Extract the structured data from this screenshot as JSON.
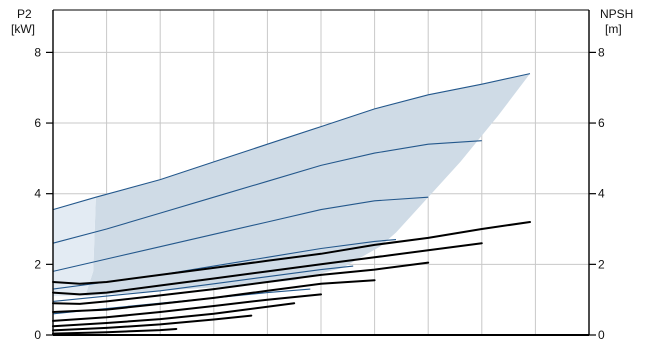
{
  "chart_data": {
    "type": "line",
    "title": "",
    "grid": true,
    "y_left": {
      "label_line1": "P2",
      "label_line2": "[kW]",
      "ylim": [
        0,
        9.2
      ],
      "ticks": [
        0,
        2,
        4,
        6,
        8
      ]
    },
    "y_right": {
      "label_line1": "NPSH",
      "label_line2": "[m]",
      "ylim": [
        0,
        9.2
      ],
      "ticks": [
        0,
        2,
        4,
        6,
        8
      ]
    },
    "x": {
      "xlim": [
        0,
        10
      ],
      "gridlines": [
        1,
        2,
        3,
        4,
        5,
        6,
        7,
        8,
        9
      ]
    },
    "p2_envelope": {
      "upper": [
        [
          0.8,
          3.9
        ],
        [
          2.0,
          4.4
        ],
        [
          3.0,
          4.9
        ],
        [
          4.0,
          5.4
        ],
        [
          5.0,
          5.9
        ],
        [
          6.0,
          6.4
        ],
        [
          7.0,
          6.8
        ],
        [
          8.0,
          7.1
        ],
        [
          8.9,
          7.4
        ]
      ],
      "right": [
        [
          8.9,
          7.4
        ],
        [
          8.3,
          6.2
        ],
        [
          7.6,
          4.9
        ],
        [
          7.0,
          3.9
        ],
        [
          6.4,
          2.9
        ],
        [
          6.1,
          2.5
        ],
        [
          5.4,
          1.9
        ],
        [
          4.5,
          1.55
        ],
        [
          3.5,
          1.4
        ],
        [
          2.5,
          1.3
        ],
        [
          1.5,
          1.2
        ],
        [
          0.6,
          1.1
        ]
      ],
      "left": [
        [
          0.6,
          1.1
        ],
        [
          0.75,
          1.8
        ],
        [
          0.8,
          3.9
        ]
      ],
      "fill_color": "#cfdbe6",
      "fill_left_color": "#e3ebf3"
    },
    "p2_series": [
      {
        "points": [
          [
            0.0,
            3.55
          ],
          [
            0.8,
            3.9
          ],
          [
            2.0,
            4.4
          ],
          [
            3.0,
            4.9
          ],
          [
            4.0,
            5.4
          ],
          [
            5.0,
            5.9
          ],
          [
            6.0,
            6.4
          ],
          [
            7.0,
            6.8
          ],
          [
            8.0,
            7.1
          ],
          [
            8.9,
            7.4
          ]
        ],
        "color": "#24588c"
      },
      {
        "points": [
          [
            0.0,
            2.6
          ],
          [
            1.0,
            3.0
          ],
          [
            2.0,
            3.45
          ],
          [
            3.0,
            3.9
          ],
          [
            4.0,
            4.35
          ],
          [
            5.0,
            4.8
          ],
          [
            6.0,
            5.15
          ],
          [
            7.0,
            5.4
          ],
          [
            8.0,
            5.5
          ]
        ],
        "color": "#24588c"
      },
      {
        "points": [
          [
            0.0,
            1.8
          ],
          [
            1.0,
            2.15
          ],
          [
            2.0,
            2.5
          ],
          [
            3.0,
            2.85
          ],
          [
            4.0,
            3.2
          ],
          [
            5.0,
            3.55
          ],
          [
            6.0,
            3.8
          ],
          [
            7.0,
            3.9
          ]
        ],
        "color": "#24588c"
      },
      {
        "points": [
          [
            0.0,
            1.3
          ],
          [
            1.0,
            1.5
          ],
          [
            2.0,
            1.7
          ],
          [
            3.0,
            1.95
          ],
          [
            4.0,
            2.2
          ],
          [
            5.0,
            2.45
          ],
          [
            6.0,
            2.65
          ],
          [
            6.4,
            2.7
          ]
        ],
        "color": "#24588c"
      },
      {
        "points": [
          [
            0.0,
            0.95
          ],
          [
            1.0,
            1.1
          ],
          [
            2.0,
            1.25
          ],
          [
            3.0,
            1.45
          ],
          [
            4.0,
            1.65
          ],
          [
            5.0,
            1.85
          ],
          [
            5.6,
            1.95
          ]
        ],
        "color": "#24588c"
      },
      {
        "points": [
          [
            0.0,
            0.6
          ],
          [
            1.0,
            0.75
          ],
          [
            2.0,
            0.9
          ],
          [
            3.0,
            1.05
          ],
          [
            4.0,
            1.2
          ],
          [
            4.8,
            1.3
          ]
        ],
        "color": "#24588c"
      }
    ],
    "npsh_series": [
      {
        "points": [
          [
            0.0,
            1.5
          ],
          [
            0.5,
            1.45
          ],
          [
            1.0,
            1.5
          ],
          [
            2.0,
            1.7
          ],
          [
            3.0,
            1.9
          ],
          [
            4.0,
            2.1
          ],
          [
            5.0,
            2.3
          ],
          [
            6.0,
            2.55
          ],
          [
            7.0,
            2.75
          ],
          [
            8.0,
            3.0
          ],
          [
            8.9,
            3.2
          ]
        ],
        "color": "#000000"
      },
      {
        "points": [
          [
            0.0,
            1.2
          ],
          [
            0.5,
            1.15
          ],
          [
            1.0,
            1.2
          ],
          [
            2.0,
            1.4
          ],
          [
            3.0,
            1.6
          ],
          [
            4.0,
            1.8
          ],
          [
            5.0,
            2.0
          ],
          [
            6.0,
            2.2
          ],
          [
            7.0,
            2.4
          ],
          [
            8.0,
            2.6
          ]
        ],
        "color": "#000000"
      },
      {
        "points": [
          [
            0.0,
            0.9
          ],
          [
            0.5,
            0.88
          ],
          [
            1.0,
            0.95
          ],
          [
            2.0,
            1.12
          ],
          [
            3.0,
            1.3
          ],
          [
            4.0,
            1.5
          ],
          [
            5.0,
            1.7
          ],
          [
            6.0,
            1.85
          ],
          [
            7.0,
            2.05
          ]
        ],
        "color": "#000000"
      },
      {
        "points": [
          [
            0.0,
            0.65
          ],
          [
            1.0,
            0.72
          ],
          [
            2.0,
            0.88
          ],
          [
            3.0,
            1.05
          ],
          [
            4.0,
            1.25
          ],
          [
            5.0,
            1.45
          ],
          [
            6.0,
            1.55
          ]
        ],
        "color": "#000000"
      },
      {
        "points": [
          [
            0.0,
            0.4
          ],
          [
            1.0,
            0.5
          ],
          [
            2.0,
            0.65
          ],
          [
            3.0,
            0.82
          ],
          [
            4.0,
            1.0
          ],
          [
            5.0,
            1.15
          ]
        ],
        "color": "#000000"
      },
      {
        "points": [
          [
            0.0,
            0.25
          ],
          [
            1.0,
            0.34
          ],
          [
            2.0,
            0.45
          ],
          [
            3.0,
            0.6
          ],
          [
            4.0,
            0.8
          ],
          [
            4.5,
            0.9
          ]
        ],
        "color": "#000000"
      },
      {
        "points": [
          [
            0.0,
            0.13
          ],
          [
            1.0,
            0.2
          ],
          [
            2.0,
            0.3
          ],
          [
            3.0,
            0.44
          ],
          [
            3.7,
            0.55
          ]
        ],
        "color": "#000000"
      },
      {
        "points": [
          [
            0.0,
            0.04
          ],
          [
            1.0,
            0.08
          ],
          [
            2.0,
            0.14
          ],
          [
            2.3,
            0.17
          ]
        ],
        "color": "#000000"
      }
    ],
    "colors": {
      "grid": "#c8c8c8",
      "frame": "#000000",
      "axis": "#000000"
    }
  }
}
